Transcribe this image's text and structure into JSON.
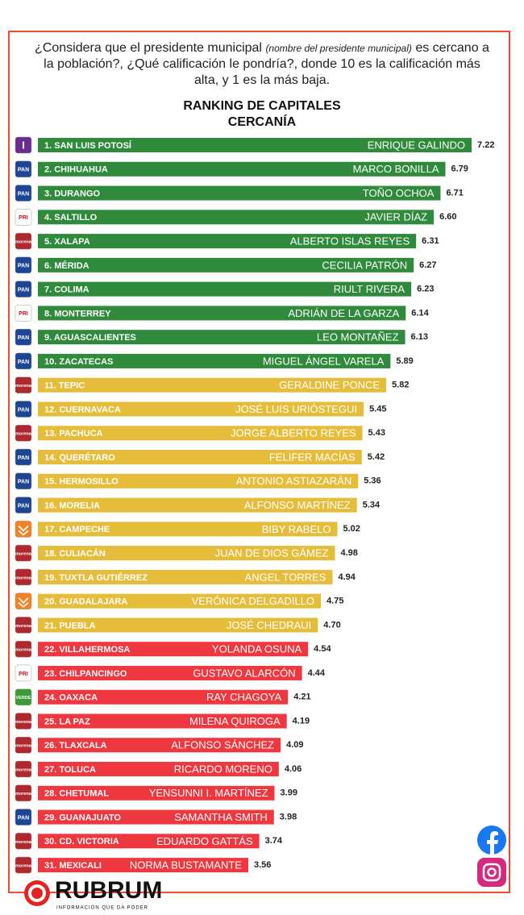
{
  "chart_data": {
    "type": "hbar",
    "question_parts": [
      "¿Considera que el presidente municipal ",
      "(nombre del presidente municipal)",
      " es cercano a la población?, ¿Qué calificación le pondría?, donde 10 es la calificación más alta, y 1 es la más baja."
    ],
    "title": "RANKING DE CAPITALES",
    "subtitle": "CERCANÍA",
    "categories": [
      "1. SAN LUIS POTOSÍ",
      "2. CHIHUAHUA",
      "3. DURANGO",
      "4. SALTILLO",
      "5. XALAPA",
      "6. MÉRIDA",
      "7. COLIMA",
      "8. MONTERREY",
      "9. AGUASCALIENTES",
      "10. ZACATECAS",
      "11. TEPIC",
      "12. CUERNAVACA",
      "13. PACHUCA",
      "14. QUERÉTARO",
      "15. HERMOSILLO",
      "16. MORELIA",
      "17. CAMPECHE",
      "18. CULIACÁN",
      "19. TUXTLA GUTIÉRREZ",
      "20. GUADALAJARA",
      "21. PUEBLA",
      "22. VILLAHERMOSA",
      "23. CHILPANCINGO",
      "24. OAXACA",
      "25. LA PAZ",
      "26. TLAXCALA",
      "27. TOLUCA",
      "28. CHETUMAL",
      "29. GUANAJUATO",
      "30. CD. VICTORIA",
      "31. MEXICALI"
    ],
    "names": [
      "ENRIQUE GALINDO",
      "MARCO BONILLA",
      "TOÑO OCHOA",
      "JAVIER DÍAZ",
      "ALBERTO ISLAS REYES",
      "CECILIA PATRÓN",
      "RIULT RIVERA",
      "ADRIÁN DE LA GARZA",
      "LEO MONTAÑEZ",
      "MIGUEL ÁNGEL VARELA",
      "GERALDINE PONCE",
      "JOSÉ LUIS URIÓSTEGUI",
      "JORGE ALBERTO REYES",
      "FELIFER MACÍAS",
      "ANTONIO ASTIAZARÁN",
      "ALFONSO MARTÍNEZ",
      "BIBY RABELO",
      "JUAN DE DIOS GÁMEZ",
      "ANGEL TORRES",
      "VERÓNICA DELGADILLO",
      "JOSÉ CHEDRAUI",
      "YOLANDA OSUNA",
      "GUSTAVO ALARCÓN",
      "RAY CHAGOYA",
      "MILENA QUIROGA",
      "ALFONSO SÁNCHEZ",
      "RICARDO MORENO",
      "YENSUNNI I. MARTÍNEZ",
      "SAMANTHA SMITH",
      "EDUARDO GATTÁS",
      "NORMA BUSTAMANTE"
    ],
    "values": [
      7.22,
      6.79,
      6.71,
      6.6,
      6.31,
      6.27,
      6.23,
      6.14,
      6.13,
      5.89,
      5.82,
      5.45,
      5.43,
      5.42,
      5.36,
      5.34,
      5.02,
      4.98,
      4.94,
      4.75,
      4.7,
      4.54,
      4.44,
      4.21,
      4.19,
      4.09,
      4.06,
      3.99,
      3.98,
      3.74,
      3.56
    ],
    "value_labels": [
      "7.22",
      "6.79",
      "6.71",
      "6.60",
      "6.31",
      "6.27",
      "6.23",
      "6.14",
      "6.13",
      "5.89",
      "5.82",
      "5.45",
      "5.43",
      "5.42",
      "5.36",
      "5.34",
      "5.02",
      "4.98",
      "4.94",
      "4.75",
      "4.70",
      "4.54",
      "4.44",
      "4.21",
      "4.19",
      "4.09",
      "4.06",
      "3.99",
      "3.98",
      "3.74",
      "3.56"
    ],
    "colors": [
      "#2f8a3b",
      "#2f8a3b",
      "#2f8a3b",
      "#2f8a3b",
      "#2f8a3b",
      "#2f8a3b",
      "#2f8a3b",
      "#2f8a3b",
      "#2f8a3b",
      "#2f8a3b",
      "#e6bd3b",
      "#e6bd3b",
      "#e6bd3b",
      "#e6bd3b",
      "#e6bd3b",
      "#e6bd3b",
      "#e6bd3b",
      "#e6bd3b",
      "#e6bd3b",
      "#e6bd3b",
      "#e6bd3b",
      "#ef3740",
      "#ef3740",
      "#ef3740",
      "#ef3740",
      "#ef3740",
      "#ef3740",
      "#ef3740",
      "#ef3740",
      "#ef3740",
      "#ef3740"
    ],
    "party_logos": [
      {
        "label": "I",
        "color": "#6a2c91"
      },
      {
        "label": "PAN",
        "color": "#1c4596"
      },
      {
        "label": "PAN",
        "color": "#1c4596"
      },
      {
        "label": "PRI",
        "color": "#ffffff"
      },
      {
        "label": "morena",
        "color": "#b0272d"
      },
      {
        "label": "PAN",
        "color": "#1c4596"
      },
      {
        "label": "PAN",
        "color": "#1c4596"
      },
      {
        "label": "PRI",
        "color": "#ffffff"
      },
      {
        "label": "PAN",
        "color": "#1c4596"
      },
      {
        "label": "PAN",
        "color": "#1c4596"
      },
      {
        "label": "morena",
        "color": "#b0272d"
      },
      {
        "label": "PAN",
        "color": "#1c4596"
      },
      {
        "label": "morena",
        "color": "#b0272d"
      },
      {
        "label": "PAN",
        "color": "#1c4596"
      },
      {
        "label": "PAN",
        "color": "#1c4596"
      },
      {
        "label": "PAN",
        "color": "#1c4596"
      },
      {
        "label": null,
        "color": "#f58220"
      },
      {
        "label": "morena",
        "color": "#b0272d"
      },
      {
        "label": "morena",
        "color": "#b0272d"
      },
      {
        "label": null,
        "color": "#f58220"
      },
      {
        "label": "morena",
        "color": "#b0272d"
      },
      {
        "label": "morena",
        "color": "#b0272d"
      },
      {
        "label": "PRI",
        "color": "#ffffff"
      },
      {
        "label": "VERDE",
        "color": "#3d9b35"
      },
      {
        "label": "morena",
        "color": "#b0272d"
      },
      {
        "label": "morena",
        "color": "#b0272d"
      },
      {
        "label": "morena",
        "color": "#b0272d"
      },
      {
        "label": "morena",
        "color": "#b0272d"
      },
      {
        "label": "PAN",
        "color": "#1c4596"
      },
      {
        "label": "morena",
        "color": "#b0272d"
      },
      {
        "label": "morena",
        "color": "#b0272d"
      }
    ]
  },
  "brand": {
    "name": "RUBRUM",
    "tagline": "INFORMACIÓN QUE DA PODER"
  }
}
